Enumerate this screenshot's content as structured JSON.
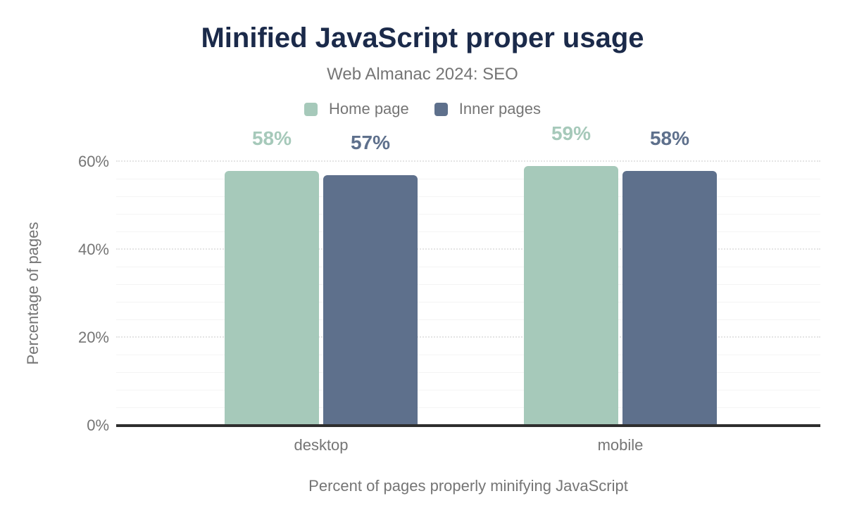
{
  "chart_data": {
    "type": "bar",
    "title": "Minified JavaScript proper usage",
    "subtitle": "Web Almanac 2024: SEO",
    "xlabel": "Percent of pages properly minifying JavaScript",
    "ylabel": "Percentage of pages",
    "categories": [
      "desktop",
      "mobile"
    ],
    "series": [
      {
        "name": "Home page",
        "color": "#a6c9ba",
        "values": [
          58,
          59
        ],
        "labels": [
          "58%",
          "59%"
        ]
      },
      {
        "name": "Inner pages",
        "color": "#5e708c",
        "values": [
          57,
          58
        ],
        "labels": [
          "57%",
          "58%"
        ]
      }
    ],
    "ylim": [
      0,
      64
    ],
    "yticks": [
      {
        "value": 0,
        "label": "0%"
      },
      {
        "value": 20,
        "label": "20%"
      },
      {
        "value": 40,
        "label": "40%"
      },
      {
        "value": 60,
        "label": "60%"
      }
    ],
    "grid": {
      "major_step": 20,
      "minor_step": 4
    },
    "legend_position": "top",
    "data_labels": true
  },
  "colors": {
    "title": "#1b2a4a",
    "text": "#757575",
    "axis_line": "#2e2e2e",
    "background": "#ffffff"
  }
}
